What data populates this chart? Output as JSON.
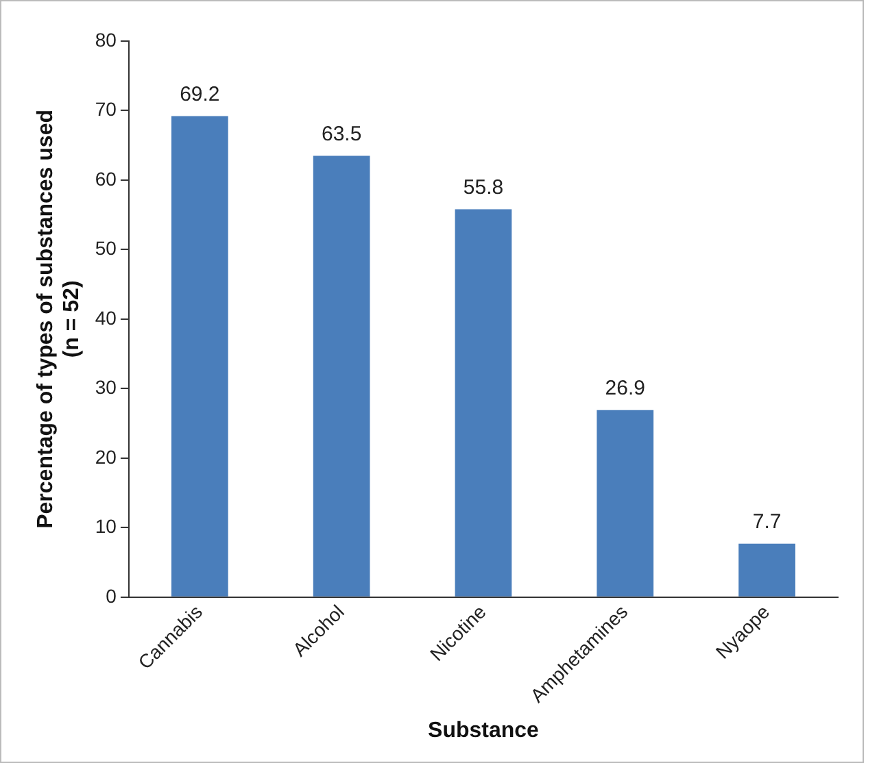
{
  "chart_data": {
    "type": "bar",
    "xlabel": "Substance",
    "ylabel": "Percentage of types of substances used\n(n = 52)",
    "categories": [
      "Cannabis",
      "Alcohol",
      "Nicotine",
      "Amphetamines",
      "Nyaope"
    ],
    "values": [
      69.2,
      63.5,
      55.8,
      26.9,
      7.7
    ],
    "color": "#4a7ebb",
    "ylim": [
      0,
      80
    ],
    "yticks": [
      0,
      10,
      20,
      30,
      40,
      50,
      60,
      70,
      80
    ],
    "grid": false,
    "legend": false,
    "data_labels": true
  }
}
